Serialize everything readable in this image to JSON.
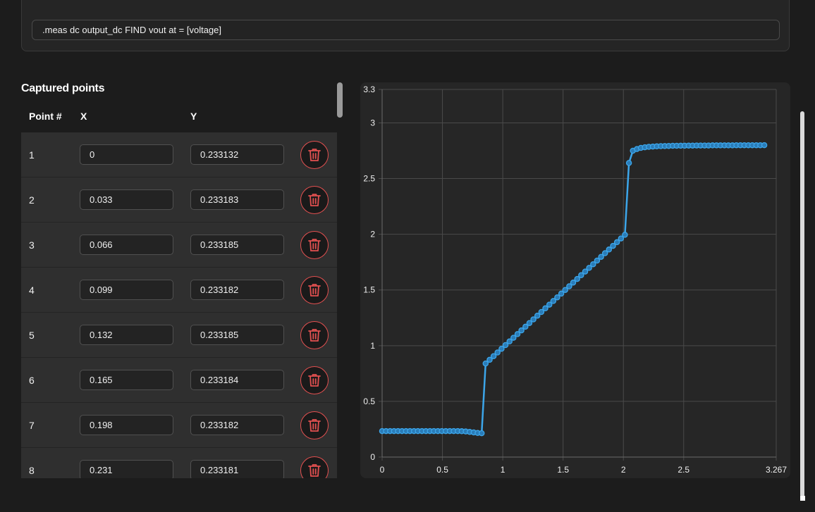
{
  "meas": {
    "command": ".meas dc output_dc FIND vout at = [voltage]"
  },
  "points_section": {
    "title": "Captured points",
    "headers": {
      "point": "Point #",
      "x": "X",
      "y": "Y"
    },
    "rows": [
      {
        "n": "1",
        "x": "0",
        "y": "0.233132"
      },
      {
        "n": "2",
        "x": "0.033",
        "y": "0.233183"
      },
      {
        "n": "3",
        "x": "0.066",
        "y": "0.233185"
      },
      {
        "n": "4",
        "x": "0.099",
        "y": "0.233182"
      },
      {
        "n": "5",
        "x": "0.132",
        "y": "0.233185"
      },
      {
        "n": "6",
        "x": "0.165",
        "y": "0.233184"
      },
      {
        "n": "7",
        "x": "0.198",
        "y": "0.233182"
      },
      {
        "n": "8",
        "x": "0.231",
        "y": "0.233181"
      }
    ],
    "delete_icon": "trash-icon"
  },
  "colors": {
    "line": "#3ca6ea",
    "delete_accent": "#e25050",
    "grid": "#4a4a4a"
  },
  "chart_data": {
    "type": "line",
    "xlim": [
      0,
      3.267
    ],
    "ylim": [
      0,
      3.3
    ],
    "x_ticks": [
      "0",
      "0.5",
      "1",
      "1.5",
      "2",
      "2.5",
      "3.267"
    ],
    "y_ticks": [
      "0",
      "0.5",
      "1",
      "1.5",
      "2",
      "2.5",
      "3",
      "3.3"
    ],
    "grid": true,
    "x_start": 0,
    "x_step": 0.033,
    "y": [
      0.233,
      0.233,
      0.233,
      0.233,
      0.233,
      0.233,
      0.233,
      0.233,
      0.233,
      0.233,
      0.233,
      0.233,
      0.233,
      0.233,
      0.233,
      0.233,
      0.233,
      0.233,
      0.233,
      0.233,
      0.232,
      0.23,
      0.226,
      0.221,
      0.216,
      0.214,
      0.84,
      0.873,
      0.906,
      0.939,
      0.972,
      1.005,
      1.038,
      1.071,
      1.104,
      1.137,
      1.17,
      1.203,
      1.236,
      1.269,
      1.302,
      1.335,
      1.368,
      1.401,
      1.434,
      1.467,
      1.5,
      1.533,
      1.566,
      1.599,
      1.632,
      1.665,
      1.698,
      1.731,
      1.764,
      1.797,
      1.83,
      1.863,
      1.896,
      1.929,
      1.962,
      1.995,
      2.64,
      2.75,
      2.765,
      2.775,
      2.781,
      2.785,
      2.787,
      2.789,
      2.791,
      2.792,
      2.793,
      2.794,
      2.794,
      2.795,
      2.795,
      2.796,
      2.796,
      2.797,
      2.797,
      2.797,
      2.797,
      2.798,
      2.798,
      2.798,
      2.798,
      2.798,
      2.798,
      2.799,
      2.799,
      2.799,
      2.799,
      2.799,
      2.799,
      2.799,
      2.8
    ]
  }
}
